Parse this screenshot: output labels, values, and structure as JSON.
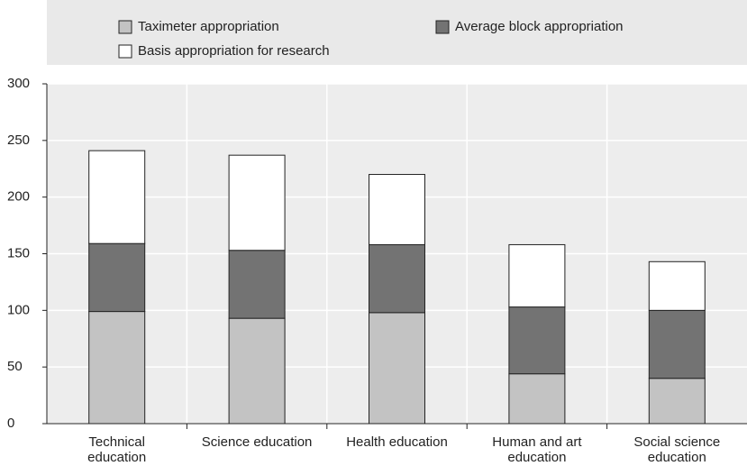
{
  "chart_data": {
    "type": "stacked_bar",
    "categories": [
      "Technical education",
      "Science education",
      "Health education",
      "Human and art education",
      "Social science education"
    ],
    "series": [
      {
        "name": "Taximeter appropriation",
        "color": "#c3c3c3",
        "values": [
          99,
          93,
          98,
          44,
          40
        ]
      },
      {
        "name": "Average block appropriation",
        "color": "#737373",
        "values": [
          60,
          60,
          60,
          59,
          60
        ]
      },
      {
        "name": "Basis appropriation for research",
        "color": "#ffffff",
        "values": [
          82,
          84,
          62,
          55,
          43
        ]
      }
    ],
    "ylim": [
      0,
      300
    ],
    "yticks": [
      0,
      50,
      100,
      150,
      200,
      250,
      300
    ],
    "grid": true,
    "legend": "top"
  }
}
